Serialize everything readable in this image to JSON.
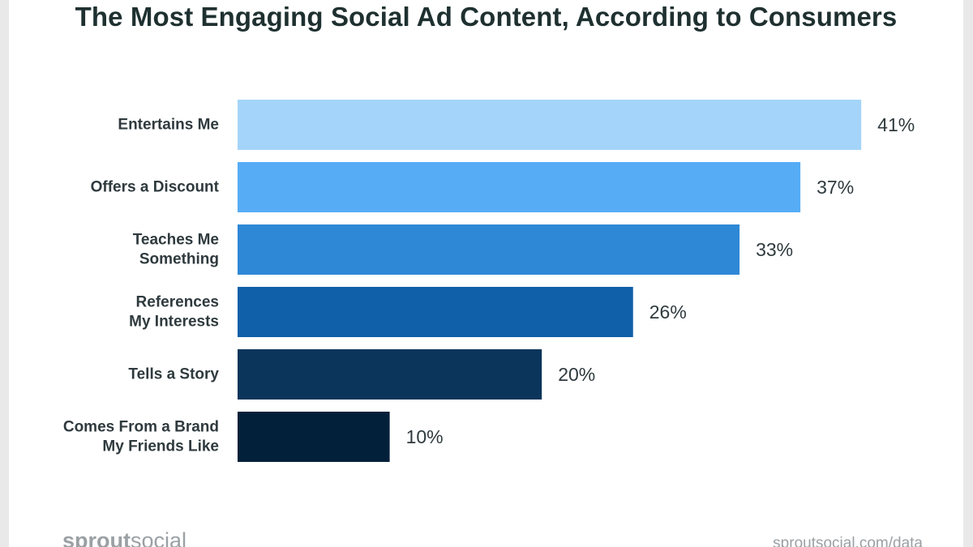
{
  "chart_data": {
    "type": "bar",
    "orientation": "horizontal",
    "title": "The Most Engaging Social Ad Content, According to Consumers",
    "categories": [
      [
        "Entertains Me"
      ],
      [
        "Offers a Discount"
      ],
      [
        "Teaches Me",
        "Something"
      ],
      [
        "References",
        "My Interests"
      ],
      [
        "Tells a Story"
      ],
      [
        "Comes From a Brand",
        "My Friends Like"
      ]
    ],
    "values": [
      41,
      37,
      33,
      26,
      20,
      10
    ],
    "value_labels": [
      "41%",
      "37%",
      "33%",
      "26%",
      "20%",
      "10%"
    ],
    "colors": [
      "#a4d4f9",
      "#56adf5",
      "#2e88d6",
      "#0f60a8",
      "#0b355b",
      "#03203a"
    ],
    "unit": "%",
    "grid": false,
    "legend": "none"
  },
  "footer": {
    "brand_left": "sprout",
    "brand_right": "social",
    "source": "sproutsocial.com/data"
  }
}
